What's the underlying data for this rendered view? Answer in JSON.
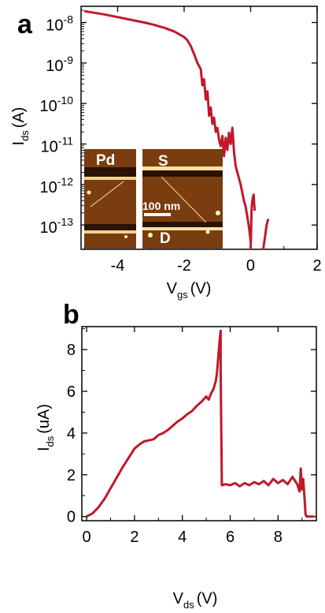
{
  "chart_data": [
    {
      "id": "a",
      "panel_label": "a",
      "type": "line",
      "xlabel_main": "V",
      "xlabel_sub": "gs",
      "xlabel_unit": "(V)",
      "ylabel_main": "I",
      "ylabel_sub": "ds",
      "ylabel_unit": "(A)",
      "xlim": [
        -5.1,
        2.0
      ],
      "ylim_log10": [
        -13.6,
        -7.6
      ],
      "y_scale": "log",
      "x_ticks": [
        -4,
        -2,
        0,
        2
      ],
      "x_tick_labels": [
        "-4",
        "-2",
        "0",
        "2"
      ],
      "y_ticks_log10": [
        -13,
        -12,
        -11,
        -10,
        -9,
        -8
      ],
      "y_tick_base": "10",
      "y_tick_exponents": [
        "-13",
        "-12",
        "-11",
        "-10",
        "-9",
        "-8"
      ],
      "line_color": "#c0192b",
      "series": [
        {
          "segments": [
            {
              "x": [
                -5.0,
                -4.7,
                -4.4,
                -4.1,
                -3.8,
                -3.5,
                -3.2,
                -2.9,
                -2.6,
                -2.3,
                -2.0,
                -1.9,
                -1.8,
                -1.7,
                -1.6,
                -1.5,
                -1.45,
                -1.4,
                -1.35,
                -1.3,
                -1.25,
                -1.2,
                -1.15,
                -1.1,
                -1.05,
                -1.0,
                -0.95,
                -0.9,
                -0.85,
                -0.8,
                -0.75,
                -0.7,
                -0.65,
                -0.6,
                -0.55,
                -0.5,
                -0.45,
                -0.4,
                -0.35,
                -0.3,
                -0.25,
                -0.2,
                -0.15,
                -0.1,
                -0.05,
                0.0
              ],
              "y_log10": [
                -7.72,
                -7.76,
                -7.8,
                -7.85,
                -7.9,
                -7.95,
                -8.0,
                -8.06,
                -8.13,
                -8.22,
                -8.36,
                -8.44,
                -8.58,
                -8.78,
                -9.0,
                -9.15,
                -9.55,
                -9.4,
                -9.9,
                -9.7,
                -10.3,
                -10.1,
                -10.5,
                -10.35,
                -10.7,
                -10.6,
                -10.9,
                -11.05,
                -10.8,
                -11.3,
                -10.85,
                -11.15,
                -10.72,
                -11.0,
                -10.6,
                -11.2,
                -11.55,
                -11.7,
                -11.85,
                -12.0,
                -12.2,
                -12.4,
                -12.55,
                -12.8,
                -13.05,
                -13.4
              ]
            },
            {
              "x": [
                0.0,
                0.03,
                0.06,
                0.09,
                0.12
              ],
              "y_log10": [
                -13.6,
                -12.55,
                -12.35,
                -12.25,
                -12.65
              ]
            },
            {
              "x": [
                0.38,
                0.43,
                0.48,
                0.53
              ],
              "y_log10": [
                -13.6,
                -13.3,
                -13.0,
                -12.85
              ]
            }
          ]
        }
      ],
      "inset": {
        "labels": [
          "Pd",
          "S",
          "D"
        ],
        "scale_bar_label": "100 nm"
      }
    },
    {
      "id": "b",
      "panel_label": "b",
      "type": "line",
      "xlabel_main": "V",
      "xlabel_sub": "ds",
      "xlabel_unit": "(V)",
      "ylabel_main": "I",
      "ylabel_sub": "ds",
      "ylabel_unit": "(uA)",
      "xlim": [
        -0.2,
        9.6
      ],
      "ylim": [
        -0.2,
        9.1
      ],
      "x_ticks": [
        0,
        2,
        4,
        6,
        8
      ],
      "x_tick_labels": [
        "0",
        "2",
        "4",
        "6",
        "8"
      ],
      "y_ticks": [
        0,
        2,
        4,
        6,
        8
      ],
      "y_tick_labels": [
        "0",
        "2",
        "4",
        "6",
        "8"
      ],
      "line_color": "#c0192b",
      "series": [
        {
          "x": [
            0.0,
            0.25,
            0.5,
            0.75,
            1.0,
            1.25,
            1.5,
            1.75,
            2.0,
            2.2,
            2.4,
            2.6,
            2.8,
            3.0,
            3.2,
            3.4,
            3.6,
            3.8,
            4.0,
            4.2,
            4.4,
            4.6,
            4.8,
            5.0,
            5.1,
            5.2,
            5.3,
            5.4,
            5.45,
            5.5,
            5.55,
            5.6,
            5.6,
            5.65,
            5.8,
            6.0,
            6.2,
            6.4,
            6.6,
            6.8,
            7.0,
            7.2,
            7.4,
            7.6,
            7.8,
            8.0,
            8.2,
            8.4,
            8.6,
            8.8,
            8.9,
            8.95,
            9.0,
            9.05,
            9.1,
            9.15,
            9.2,
            9.5
          ],
          "y": [
            0.0,
            0.15,
            0.45,
            0.85,
            1.35,
            1.85,
            2.35,
            2.8,
            3.25,
            3.45,
            3.6,
            3.65,
            3.7,
            3.9,
            4.0,
            4.15,
            4.35,
            4.55,
            4.7,
            4.9,
            5.05,
            5.3,
            5.5,
            5.75,
            5.6,
            5.9,
            6.1,
            6.5,
            6.9,
            7.6,
            8.3,
            8.9,
            7.0,
            1.5,
            1.55,
            1.5,
            1.6,
            1.45,
            1.6,
            1.5,
            1.65,
            1.55,
            1.7,
            1.5,
            1.8,
            1.6,
            1.75,
            1.55,
            1.9,
            1.55,
            1.2,
            2.3,
            1.3,
            1.8,
            1.0,
            0.1,
            0.0,
            0.0
          ]
        }
      ]
    }
  ]
}
